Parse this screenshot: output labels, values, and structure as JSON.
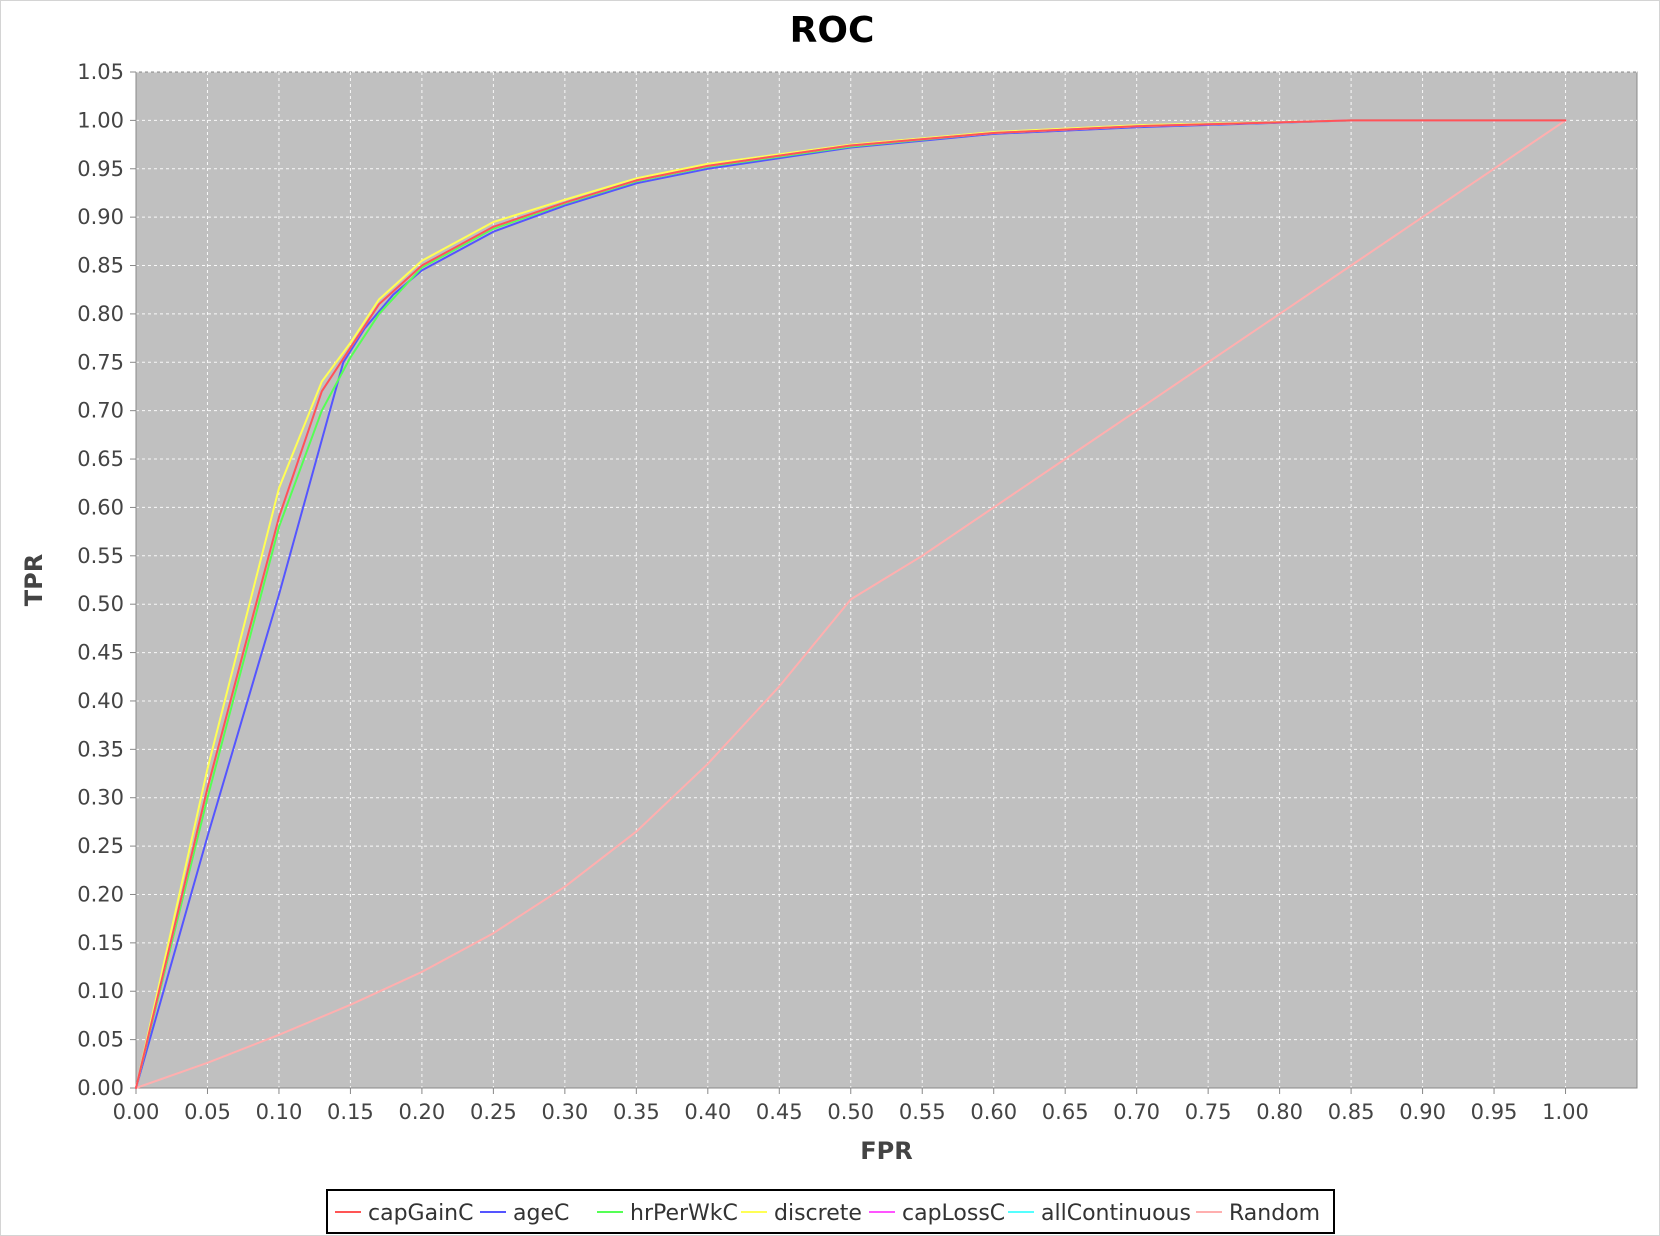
{
  "chart_data": {
    "type": "line",
    "title": "ROC",
    "xlabel": "FPR",
    "ylabel": "TPR",
    "xlim": [
      0,
      1.05
    ],
    "ylim": [
      0,
      1.05
    ],
    "x_ticks": [
      "0.00",
      "0.05",
      "0.10",
      "0.15",
      "0.20",
      "0.25",
      "0.30",
      "0.35",
      "0.40",
      "0.45",
      "0.50",
      "0.55",
      "0.60",
      "0.65",
      "0.70",
      "0.75",
      "0.80",
      "0.85",
      "0.90",
      "0.95",
      "1.00"
    ],
    "y_ticks": [
      "0.00",
      "0.05",
      "0.10",
      "0.15",
      "0.20",
      "0.25",
      "0.30",
      "0.35",
      "0.40",
      "0.45",
      "0.50",
      "0.55",
      "0.60",
      "0.65",
      "0.70",
      "0.75",
      "0.80",
      "0.85",
      "0.90",
      "0.95",
      "1.00",
      "1.05"
    ],
    "grid": true,
    "plot_background": "#c0c0c0",
    "legend_position": "bottom",
    "series": [
      {
        "name": "capGainC",
        "color": "#ff5555",
        "x": [
          0,
          0.05,
          0.1,
          0.13,
          0.15,
          0.17,
          0.2,
          0.25,
          0.3,
          0.35,
          0.4,
          0.5,
          0.6,
          0.7,
          0.85,
          1.0
        ],
        "y": [
          0,
          0.31,
          0.59,
          0.72,
          0.765,
          0.81,
          0.85,
          0.89,
          0.915,
          0.938,
          0.953,
          0.974,
          0.987,
          0.994,
          1.0,
          1.0
        ]
      },
      {
        "name": "ageC",
        "color": "#5555ff",
        "x": [
          0,
          0.05,
          0.1,
          0.145,
          0.16,
          0.18,
          0.2,
          0.25,
          0.3,
          0.35,
          0.4,
          0.5,
          0.6,
          0.7,
          0.85,
          1.0
        ],
        "y": [
          0,
          0.26,
          0.51,
          0.75,
          0.785,
          0.82,
          0.845,
          0.885,
          0.912,
          0.935,
          0.95,
          0.972,
          0.986,
          0.993,
          1.0,
          1.0
        ]
      },
      {
        "name": "hrPerWkC",
        "color": "#55ff55",
        "x": [
          0,
          0.05,
          0.1,
          0.13,
          0.15,
          0.17,
          0.2,
          0.25,
          0.3,
          0.35,
          0.4,
          0.5,
          0.6,
          0.7,
          0.85,
          1.0
        ],
        "y": [
          0,
          0.3,
          0.58,
          0.7,
          0.755,
          0.8,
          0.848,
          0.888,
          0.914,
          0.937,
          0.952,
          0.973,
          0.987,
          0.994,
          1.0,
          1.0
        ]
      },
      {
        "name": "discrete",
        "color": "#ffff55",
        "x": [
          0,
          0.05,
          0.1,
          0.13,
          0.15,
          0.17,
          0.2,
          0.25,
          0.3,
          0.35,
          0.4,
          0.5,
          0.6,
          0.7,
          0.85,
          1.0
        ],
        "y": [
          0,
          0.33,
          0.62,
          0.73,
          0.77,
          0.815,
          0.855,
          0.895,
          0.918,
          0.94,
          0.955,
          0.975,
          0.988,
          0.995,
          1.0,
          1.0
        ]
      },
      {
        "name": "capLossC",
        "color": "#ff55ff",
        "x": [
          0,
          0.05,
          0.1,
          0.13,
          0.15,
          0.17,
          0.2,
          0.25,
          0.3,
          0.35,
          0.4,
          0.5,
          0.6,
          0.7,
          0.85,
          1.0
        ],
        "y": [
          0,
          0.31,
          0.59,
          0.72,
          0.765,
          0.81,
          0.85,
          0.89,
          0.915,
          0.938,
          0.953,
          0.974,
          0.987,
          0.994,
          1.0,
          1.0
        ]
      },
      {
        "name": "allContinuous",
        "color": "#55ffff",
        "x": [
          0,
          0.05,
          0.1,
          0.13,
          0.15,
          0.17,
          0.2,
          0.25,
          0.3,
          0.35,
          0.4,
          0.5,
          0.6,
          0.7,
          0.85,
          1.0
        ],
        "y": [
          0,
          0.31,
          0.59,
          0.72,
          0.765,
          0.81,
          0.85,
          0.89,
          0.915,
          0.938,
          0.953,
          0.974,
          0.987,
          0.994,
          1.0,
          1.0
        ]
      },
      {
        "name": "Random",
        "color": "#ffafaf",
        "x": [
          0,
          0.05,
          0.1,
          0.15,
          0.2,
          0.25,
          0.3,
          0.35,
          0.4,
          0.45,
          0.5,
          0.55,
          0.6,
          0.65,
          0.7,
          0.75,
          0.8,
          0.85,
          0.9,
          0.95,
          1.0
        ],
        "y": [
          0,
          0.026,
          0.055,
          0.086,
          0.12,
          0.16,
          0.208,
          0.265,
          0.335,
          0.415,
          0.505,
          0.55,
          0.6,
          0.65,
          0.7,
          0.75,
          0.8,
          0.85,
          0.9,
          0.95,
          1.0
        ]
      }
    ]
  }
}
